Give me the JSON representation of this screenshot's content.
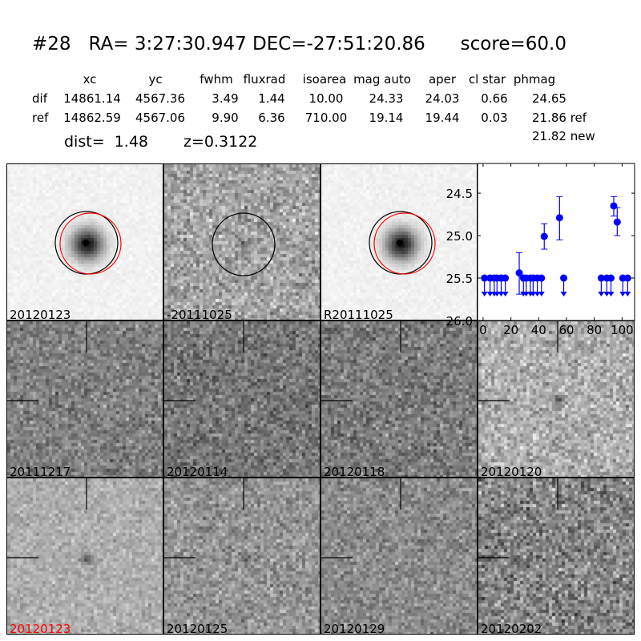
{
  "title": {
    "id": "#28",
    "ra": "RA= 3:27:30.947",
    "dec": "DEC=-27:51:20.86",
    "score": "score=60.0"
  },
  "table": {
    "headers": [
      "xc",
      "yc",
      "fwhm",
      "fluxrad",
      "isoarea",
      "mag auto",
      "aper",
      "cl star",
      "phmag"
    ],
    "rows": [
      {
        "label": "dif",
        "values": [
          "14861.14",
          "4567.36",
          "3.49",
          "1.44",
          "10.00",
          "24.33",
          "24.03",
          "0.66",
          "24.65"
        ]
      },
      {
        "label": "ref",
        "values": [
          "14862.59",
          "4567.06",
          "9.90",
          "6.36",
          "710.00",
          "19.14",
          "19.44",
          "0.03",
          "21.86 ref"
        ]
      }
    ],
    "extra": "21.82 new",
    "dist": "dist=  1.48",
    "z": "z=0.3122"
  },
  "stamps": [
    {
      "label": "20120123",
      "label_color": "#000000"
    },
    {
      "label": "-20111025",
      "label_color": "#000000"
    },
    {
      "label": "R20111025",
      "label_color": "#000000"
    },
    {
      "label": "20111217",
      "label_color": "#000000"
    },
    {
      "label": "20120114",
      "label_color": "#000000"
    },
    {
      "label": "20120118",
      "label_color": "#000000"
    },
    {
      "label": "20120120",
      "label_color": "#000000"
    },
    {
      "label": "20120123",
      "label_color": "#ff0000"
    },
    {
      "label": "20120125",
      "label_color": "#000000"
    },
    {
      "label": "20120129",
      "label_color": "#000000"
    },
    {
      "label": "20120202",
      "label_color": "#000000"
    }
  ],
  "chart_data": {
    "type": "scatter",
    "xlim": [
      -4,
      109
    ],
    "ylim": [
      26.0,
      24.15
    ],
    "y_inverted": true,
    "xticks": [
      "0",
      "20",
      "40",
      "60",
      "80",
      "100"
    ],
    "yticks": [
      "24.5",
      "25.0",
      "25.5",
      "26.0"
    ],
    "color": "#0000ff",
    "detections": [
      {
        "x": 26,
        "y": 25.44,
        "err_lo": 25.2,
        "err_hi": 25.69
      },
      {
        "x": 44,
        "y": 25.01,
        "err_lo": 24.86,
        "err_hi": 25.16
      },
      {
        "x": 55,
        "y": 24.79,
        "err_lo": 24.54,
        "err_hi": 25.05
      },
      {
        "x": 94,
        "y": 24.65,
        "err_lo": 24.54,
        "err_hi": 24.77
      },
      {
        "x": 96.5,
        "y": 24.84,
        "err_lo": 24.67,
        "err_hi": 25.0
      }
    ],
    "upper_limits": {
      "y": 25.5,
      "x": [
        1,
        5,
        8,
        10,
        13,
        16,
        29,
        31,
        34,
        36,
        39,
        42,
        58,
        85,
        89,
        92,
        100.5,
        104
      ]
    }
  }
}
